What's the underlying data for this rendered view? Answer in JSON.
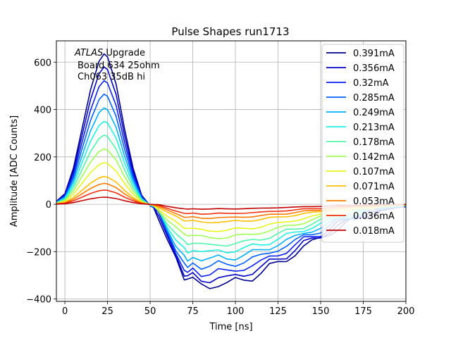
{
  "chart_data": {
    "type": "line",
    "title": "Pulse Shapes run1713",
    "xlabel": "Time [ns]",
    "ylabel": "Amplitude [ADC Counts]",
    "xlim": [
      -5,
      200
    ],
    "ylim": [
      -410,
      690
    ],
    "xticks": [
      0,
      25,
      50,
      75,
      100,
      125,
      150,
      175,
      200
    ],
    "yticks": [
      -400,
      -200,
      0,
      200,
      400,
      600
    ],
    "grid": true,
    "legend_position": "upper right",
    "annotation": {
      "line1_italic": "ATLAS",
      "line1_rest": " Upgrade",
      "line2": "Board 634 25ohm",
      "line3": "Ch063 35dB hi"
    },
    "pulse_shape_template": {
      "x": [
        -5,
        0,
        5,
        10,
        15,
        20,
        23,
        25,
        30,
        35,
        40,
        45,
        50,
        52,
        55,
        60,
        65,
        70,
        72,
        75,
        80,
        85,
        90,
        95,
        100,
        105,
        110,
        115,
        120,
        125,
        130,
        135,
        140,
        145,
        150,
        155,
        160,
        165,
        170,
        175,
        180,
        185,
        190,
        195,
        200
      ],
      "y_normalized": [
        0.02,
        0.07,
        0.24,
        0.5,
        0.76,
        0.95,
        1.0,
        0.98,
        0.8,
        0.5,
        0.24,
        0.06,
        -0.02,
        -0.04,
        -0.15,
        -0.45,
        -0.7,
        -0.92,
        -0.97,
        -0.93,
        -0.99,
        -1.0,
        -0.97,
        -0.98,
        -0.95,
        -0.92,
        -0.88,
        -0.84,
        -0.78,
        -0.72,
        -0.66,
        -0.6,
        -0.53,
        -0.47,
        -0.41,
        -0.35,
        -0.29,
        -0.24,
        -0.19,
        -0.15,
        -0.11,
        -0.08,
        -0.06,
        -0.04,
        -0.03
      ]
    },
    "series": [
      {
        "name": "0.391mA",
        "color": "#00008f",
        "peak": 635,
        "trough": 345
      },
      {
        "name": "0.356mA",
        "color": "#0000c8",
        "peak": 580,
        "trough": 320
      },
      {
        "name": "0.32mA",
        "color": "#0a1ef2",
        "peak": 522,
        "trough": 292
      },
      {
        "name": "0.285mA",
        "color": "#0060ff",
        "peak": 465,
        "trough": 262
      },
      {
        "name": "0.249mA",
        "color": "#00b0ff",
        "peak": 407,
        "trough": 233
      },
      {
        "name": "0.213mA",
        "color": "#1ff0e4",
        "peak": 350,
        "trough": 203
      },
      {
        "name": "0.178mA",
        "color": "#4ff5a8",
        "peak": 292,
        "trough": 174
      },
      {
        "name": "0.142mA",
        "color": "#a0ff56",
        "peak": 234,
        "trough": 142
      },
      {
        "name": "0.107mA",
        "color": "#e6f51a",
        "peak": 176,
        "trough": 112
      },
      {
        "name": "0.071mA",
        "color": "#ffbf00",
        "peak": 117,
        "trough": 76
      },
      {
        "name": "0.053mA",
        "color": "#ff7a00",
        "peak": 88,
        "trough": 58
      },
      {
        "name": "0.036mA",
        "color": "#f03010",
        "peak": 60,
        "trough": 40
      },
      {
        "name": "0.018mA",
        "color": "#c00000",
        "peak": 30,
        "trough": 20
      }
    ]
  }
}
